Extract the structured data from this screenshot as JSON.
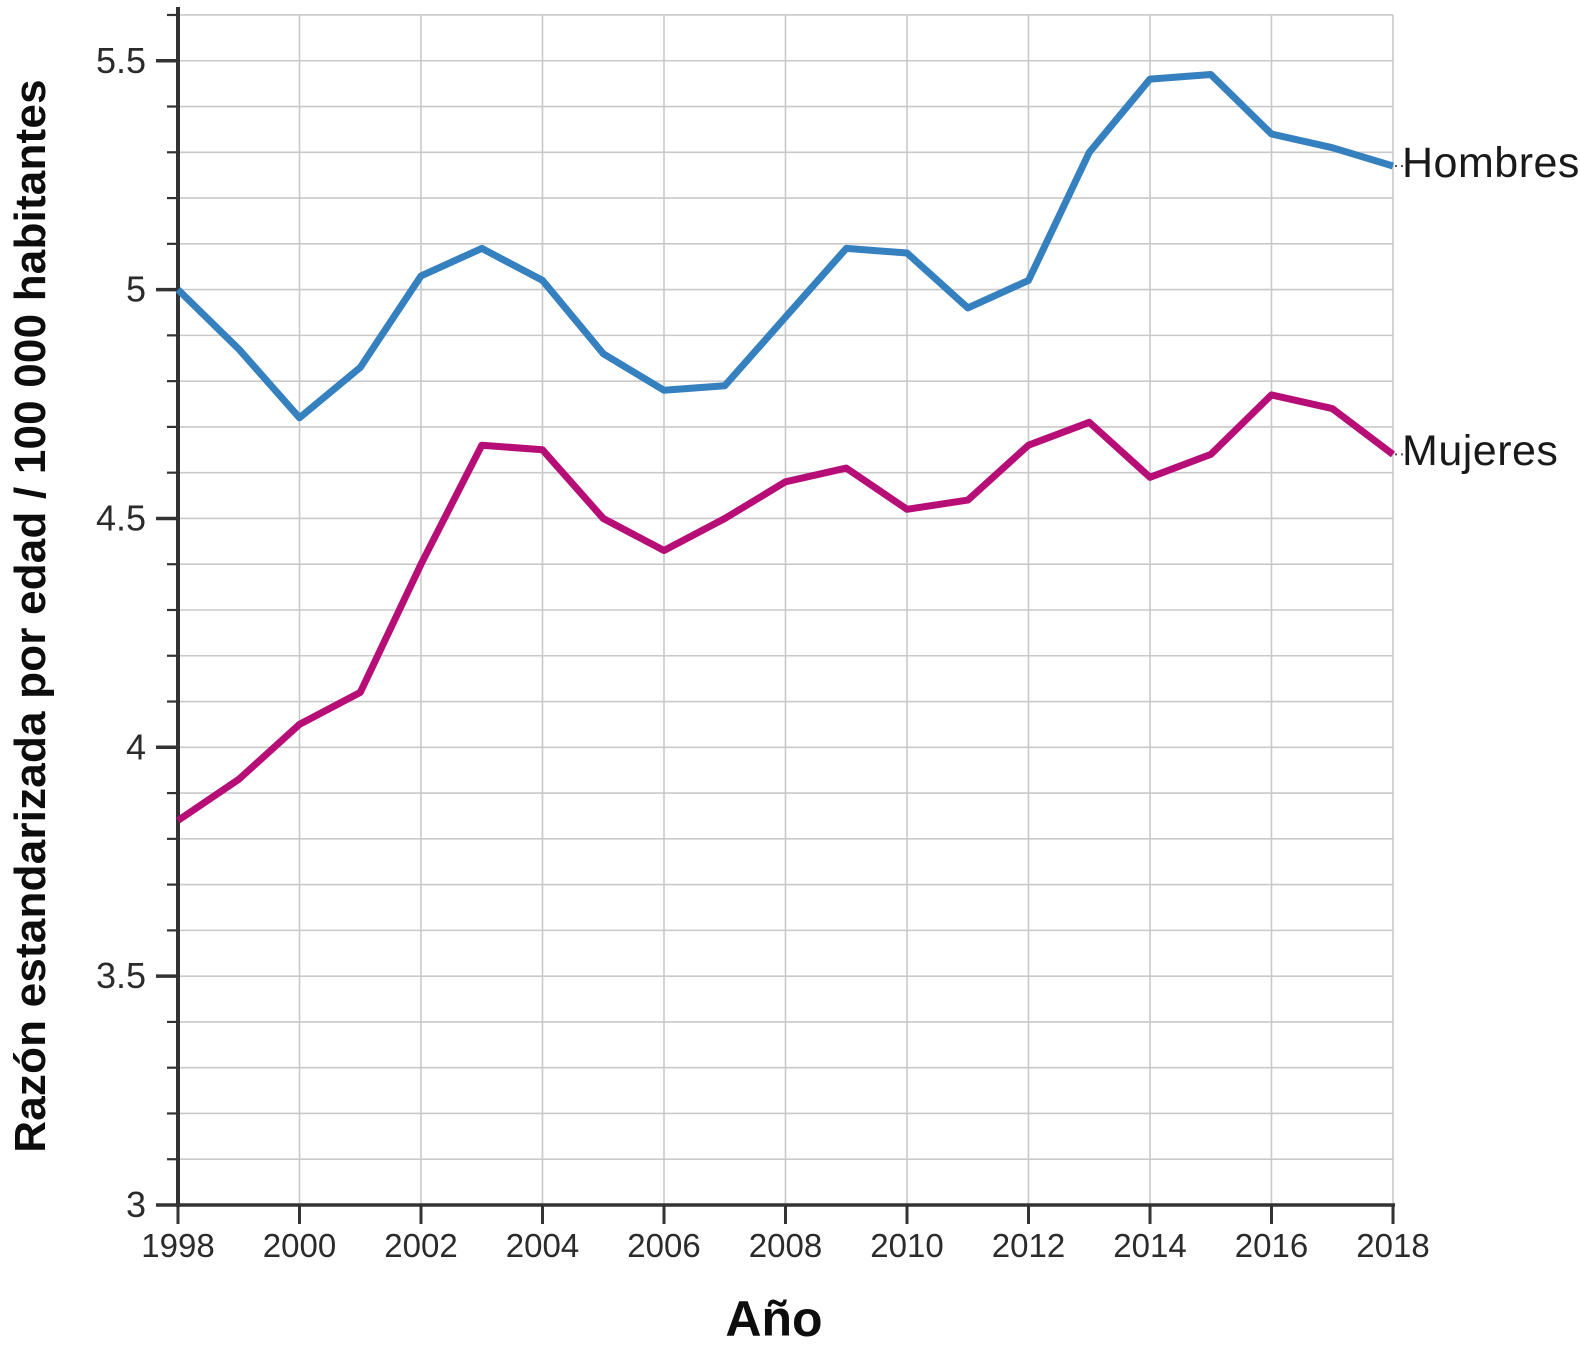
{
  "chart_data": {
    "type": "line",
    "title": "",
    "xlabel": "Año",
    "ylabel": "Razón estandarizada por edad / 100 000 habitantes",
    "x": [
      1998,
      1999,
      2000,
      2001,
      2002,
      2003,
      2004,
      2005,
      2006,
      2007,
      2008,
      2009,
      2010,
      2011,
      2012,
      2013,
      2014,
      2015,
      2016,
      2017,
      2018
    ],
    "series": [
      {
        "name": "Hombres",
        "color": "#3580bf",
        "values": [
          5.0,
          4.87,
          4.72,
          4.83,
          5.03,
          5.09,
          5.02,
          4.86,
          4.78,
          4.79,
          4.94,
          5.09,
          5.08,
          4.96,
          5.02,
          5.3,
          5.46,
          5.47,
          5.34,
          5.31,
          5.27
        ]
      },
      {
        "name": "Mujeres",
        "color": "#b60d77",
        "values": [
          3.84,
          3.93,
          4.05,
          4.12,
          4.4,
          4.66,
          4.65,
          4.5,
          4.43,
          4.5,
          4.58,
          4.61,
          4.52,
          4.54,
          4.66,
          4.71,
          4.59,
          4.64,
          4.77,
          4.74,
          4.64
        ]
      }
    ],
    "xlim": [
      1998,
      2018
    ],
    "ylim": [
      3.0,
      5.6
    ],
    "x_tick_step": 2,
    "x_tick_labels": [
      "1998",
      "2000",
      "2002",
      "2004",
      "2006",
      "2008",
      "2010",
      "2012",
      "2014",
      "2016",
      "2018"
    ],
    "y_major_ticks": [
      3,
      3.5,
      4,
      4.5,
      5,
      5.5
    ],
    "y_major_labels": [
      "3",
      "3.5",
      "4",
      "4.5",
      "5",
      "5.5"
    ],
    "y_minor_step": 0.1,
    "grid": true,
    "legend_position": "series-end-right",
    "colors": {
      "grid": "#c9c9c9",
      "axis": "#333333",
      "tick_label": "#2b2b2b",
      "leader_dots": "#555555"
    }
  }
}
